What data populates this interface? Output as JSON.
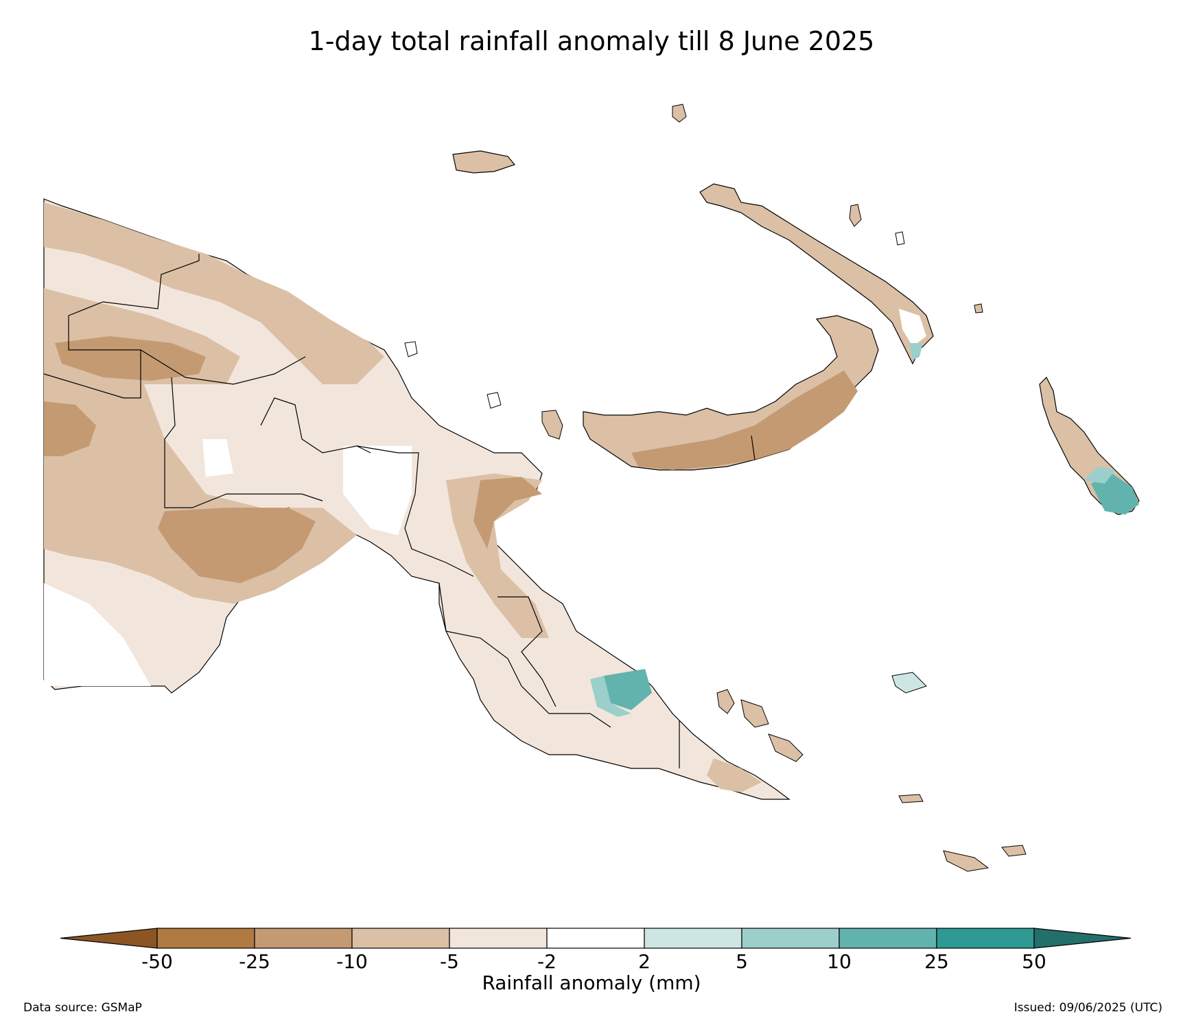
{
  "title": "1-day total rainfall anomaly till 8 June 2025",
  "colorbar": {
    "label": "Rainfall anomaly (mm)",
    "ticks": [
      "-50",
      "-25",
      "-10",
      "-5",
      "-2",
      "2",
      "5",
      "10",
      "25",
      "50"
    ],
    "colors": [
      "#8c5624",
      "#b07a40",
      "#c49a72",
      "#dbc0a6",
      "#f2e6dc",
      "#ffffff",
      "#cde6e4",
      "#9ccfcb",
      "#62b3ae",
      "#2f9a94",
      "#236f6b"
    ]
  },
  "footer": {
    "source": "Data source: GSMaP",
    "issued": "Issued: 09/06/2025 (UTC)"
  }
}
